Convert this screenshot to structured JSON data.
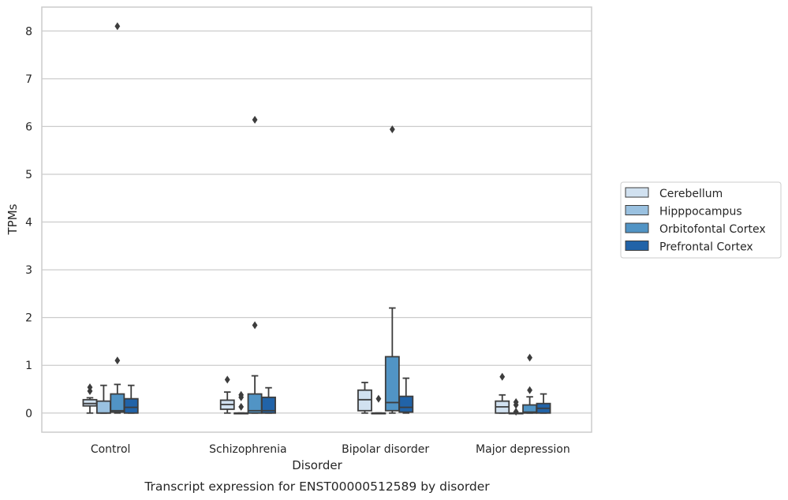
{
  "chart_data": {
    "type": "box",
    "title": "",
    "caption": "Transcript expression for ENST00000512589 by disorder",
    "xlabel": "Disorder",
    "ylabel": "TPMs",
    "ylim": [
      -0.4,
      8.5
    ],
    "yticks": [
      0,
      1,
      2,
      3,
      4,
      5,
      6,
      7,
      8
    ],
    "grid": "horizontal",
    "legend_position": "right",
    "categories": [
      "Control",
      "Schizophrenia",
      "Bipolar disorder",
      "Major depression"
    ],
    "series": [
      {
        "name": "Cerebellum",
        "color": "#d1e1f0",
        "boxes": [
          {
            "whislo": 0.0,
            "q1": 0.15,
            "med": 0.2,
            "q3": 0.28,
            "whishi": 0.32,
            "fliers": [
              0.46,
              0.54
            ]
          },
          {
            "whislo": 0.0,
            "q1": 0.08,
            "med": 0.18,
            "q3": 0.27,
            "whishi": 0.44,
            "fliers": [
              0.7
            ]
          },
          {
            "whislo": 0.0,
            "q1": 0.05,
            "med": 0.28,
            "q3": 0.48,
            "whishi": 0.64,
            "fliers": []
          },
          {
            "whislo": 0.0,
            "q1": 0.0,
            "med": 0.13,
            "q3": 0.25,
            "whishi": 0.38,
            "fliers": [
              0.76
            ]
          }
        ]
      },
      {
        "name": "Hipppocampus",
        "color": "#9ac1e0",
        "boxes": [
          {
            "whislo": 0.0,
            "q1": 0.0,
            "med": 0.0,
            "q3": 0.25,
            "whishi": 0.58,
            "fliers": []
          },
          {
            "whislo": 0.0,
            "q1": 0.0,
            "med": 0.0,
            "q3": 0.0,
            "whishi": 0.0,
            "fliers": [
              0.13,
              0.33,
              0.38
            ]
          },
          {
            "whislo": 0.0,
            "q1": 0.0,
            "med": 0.0,
            "q3": 0.0,
            "whishi": 0.0,
            "fliers": [
              0.3
            ]
          },
          {
            "whislo": 0.0,
            "q1": 0.0,
            "med": 0.0,
            "q3": 0.0,
            "whishi": 0.0,
            "fliers": [
              0.03,
              0.17,
              0.23
            ]
          }
        ]
      },
      {
        "name": "Orbitofontal Cortex",
        "color": "#5194c5",
        "boxes": [
          {
            "whislo": 0.0,
            "q1": 0.02,
            "med": 0.05,
            "q3": 0.4,
            "whishi": 0.6,
            "fliers": [
              1.1,
              8.1
            ]
          },
          {
            "whislo": 0.0,
            "q1": 0.0,
            "med": 0.05,
            "q3": 0.4,
            "whishi": 0.78,
            "fliers": [
              1.84,
              6.14
            ]
          },
          {
            "whislo": 0.0,
            "q1": 0.05,
            "med": 0.22,
            "q3": 1.18,
            "whishi": 2.2,
            "fliers": [
              5.94
            ]
          },
          {
            "whislo": 0.0,
            "q1": 0.0,
            "med": 0.02,
            "q3": 0.17,
            "whishi": 0.34,
            "fliers": [
              0.48,
              1.16
            ]
          }
        ]
      },
      {
        "name": "Prefrontal Cortex",
        "color": "#2163a8",
        "boxes": [
          {
            "whislo": 0.0,
            "q1": 0.0,
            "med": 0.12,
            "q3": 0.3,
            "whishi": 0.58,
            "fliers": []
          },
          {
            "whislo": 0.0,
            "q1": 0.0,
            "med": 0.05,
            "q3": 0.33,
            "whishi": 0.53,
            "fliers": []
          },
          {
            "whislo": 0.0,
            "q1": 0.02,
            "med": 0.12,
            "q3": 0.35,
            "whishi": 0.73,
            "fliers": []
          },
          {
            "whislo": 0.0,
            "q1": 0.0,
            "med": 0.1,
            "q3": 0.2,
            "whishi": 0.4,
            "fliers": []
          }
        ]
      }
    ]
  }
}
